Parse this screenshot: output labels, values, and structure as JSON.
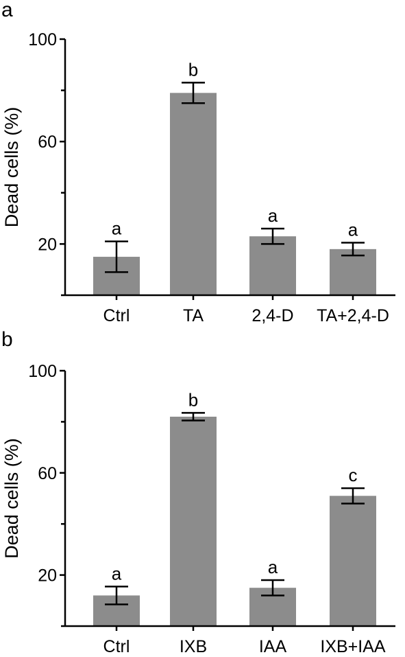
{
  "chart_data": [
    {
      "type": "bar",
      "panel_label": "a",
      "ylabel": "Dead cells (%)",
      "xlabel": "",
      "ylim": [
        0,
        100
      ],
      "yticks_labeled": [
        20,
        60,
        100
      ],
      "yticks_minor": [
        0,
        40,
        80
      ],
      "categories": [
        "Ctrl",
        "TA",
        "2,4-D",
        "TA+2,4-D"
      ],
      "values": [
        15,
        79,
        23,
        18
      ],
      "errors": [
        6,
        4,
        3,
        2.5
      ],
      "significance": [
        "a",
        "b",
        "a",
        "a"
      ],
      "bar_color": "#8c8c8c",
      "grid": false
    },
    {
      "type": "bar",
      "panel_label": "b",
      "ylabel": "Dead cells (%)",
      "xlabel": "",
      "ylim": [
        0,
        100
      ],
      "yticks_labeled": [
        20,
        60,
        100
      ],
      "yticks_minor": [
        0,
        40,
        80
      ],
      "categories": [
        "Ctrl",
        "IXB",
        "IAA",
        "IXB+IAA"
      ],
      "values": [
        12,
        82,
        15,
        51
      ],
      "errors": [
        3.5,
        1.5,
        3,
        3
      ],
      "significance": [
        "a",
        "b",
        "a",
        "c"
      ],
      "bar_color": "#8c8c8c",
      "grid": false
    }
  ]
}
